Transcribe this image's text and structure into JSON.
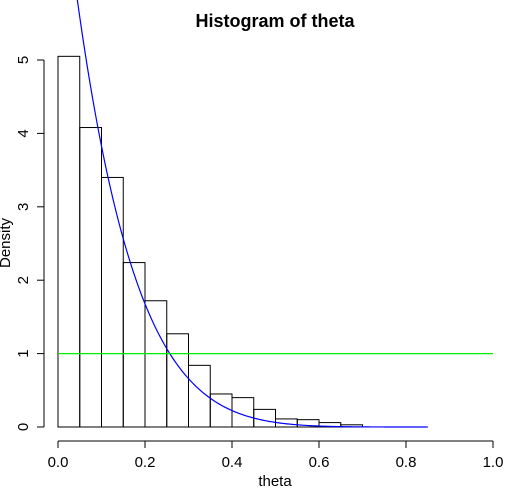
{
  "chart_data": {
    "type": "bar",
    "title": "Histogram of theta",
    "xlabel": "theta",
    "ylabel": "Density",
    "xlim": [
      0,
      1
    ],
    "ylim": [
      0,
      5
    ],
    "x_ticks": [
      "0.0",
      "0.2",
      "0.4",
      "0.6",
      "0.8",
      "1.0"
    ],
    "y_ticks": [
      "0",
      "1",
      "2",
      "3",
      "4",
      "5"
    ],
    "bin_width": 0.05,
    "bins": [
      {
        "start": 0.0,
        "end": 0.05,
        "density": 5.05
      },
      {
        "start": 0.05,
        "end": 0.1,
        "density": 4.08
      },
      {
        "start": 0.1,
        "end": 0.15,
        "density": 3.4
      },
      {
        "start": 0.15,
        "end": 0.2,
        "density": 2.24
      },
      {
        "start": 0.2,
        "end": 0.25,
        "density": 1.72
      },
      {
        "start": 0.25,
        "end": 0.3,
        "density": 1.27
      },
      {
        "start": 0.3,
        "end": 0.35,
        "density": 0.84
      },
      {
        "start": 0.35,
        "end": 0.4,
        "density": 0.45
      },
      {
        "start": 0.4,
        "end": 0.45,
        "density": 0.4
      },
      {
        "start": 0.45,
        "end": 0.5,
        "density": 0.24
      },
      {
        "start": 0.5,
        "end": 0.55,
        "density": 0.11
      },
      {
        "start": 0.55,
        "end": 0.6,
        "density": 0.1
      },
      {
        "start": 0.6,
        "end": 0.65,
        "density": 0.06
      },
      {
        "start": 0.65,
        "end": 0.7,
        "density": 0.03
      }
    ],
    "overlay_curves": [
      {
        "kind": "beta density",
        "shape": [
          1,
          8
        ],
        "color": "#0000ff",
        "x_range": [
          0.03,
          0.85
        ]
      },
      {
        "kind": "horizontal line",
        "y": 1,
        "color": "#00ee00",
        "x_range": [
          0,
          1
        ]
      }
    ],
    "grid": false
  }
}
